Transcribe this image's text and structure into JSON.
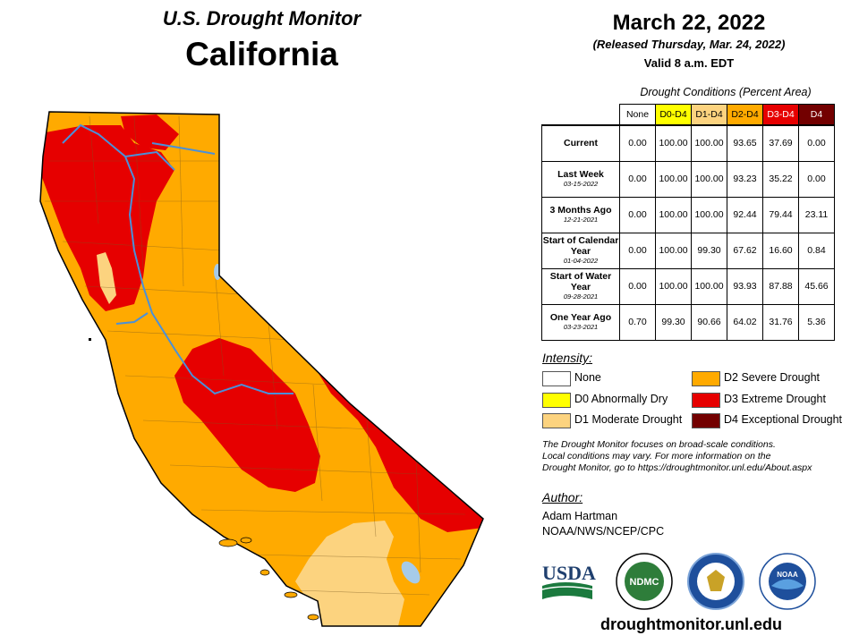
{
  "header": {
    "subtitle": "U.S. Drought Monitor",
    "state": "California",
    "date": "March 22, 2022",
    "released": "(Released Thursday, Mar. 24, 2022)",
    "valid": "Valid 8 a.m. EDT"
  },
  "conditions": {
    "caption": "Drought Conditions (Percent Area)",
    "columns": [
      {
        "label": "None",
        "color": "#ffffff"
      },
      {
        "label": "D0-D4",
        "color": "#ffff00"
      },
      {
        "label": "D1-D4",
        "color": "#fcd37f"
      },
      {
        "label": "D2-D4",
        "color": "#ffaa00"
      },
      {
        "label": "D3-D4",
        "color": "#e60000"
      },
      {
        "label": "D4",
        "color": "#730000"
      }
    ],
    "rows": [
      {
        "label": "Current",
        "date": "",
        "values": [
          "0.00",
          "100.00",
          "100.00",
          "93.65",
          "37.69",
          "0.00"
        ]
      },
      {
        "label": "Last Week",
        "date": "03-15-2022",
        "values": [
          "0.00",
          "100.00",
          "100.00",
          "93.23",
          "35.22",
          "0.00"
        ]
      },
      {
        "label": "3 Months Ago",
        "date": "12-21-2021",
        "values": [
          "0.00",
          "100.00",
          "100.00",
          "92.44",
          "79.44",
          "23.11"
        ]
      },
      {
        "label": "Start of Calendar Year",
        "date": "01-04-2022",
        "values": [
          "0.00",
          "100.00",
          "99.30",
          "67.62",
          "16.60",
          "0.84"
        ]
      },
      {
        "label": "Start of Water Year",
        "date": "09-28-2021",
        "values": [
          "0.00",
          "100.00",
          "100.00",
          "93.93",
          "87.88",
          "45.66"
        ]
      },
      {
        "label": "One Year Ago",
        "date": "03-23-2021",
        "values": [
          "0.70",
          "99.30",
          "90.66",
          "64.02",
          "31.76",
          "5.36"
        ]
      }
    ]
  },
  "intensity": {
    "title": "Intensity:",
    "items": [
      {
        "label": "None",
        "color": "#ffffff"
      },
      {
        "label": "D0 Abnormally Dry",
        "color": "#ffff00"
      },
      {
        "label": "D1 Moderate Drought",
        "color": "#fcd37f"
      },
      {
        "label": "D2 Severe Drought",
        "color": "#ffaa00"
      },
      {
        "label": "D3 Extreme Drought",
        "color": "#e60000"
      },
      {
        "label": "D4 Exceptional Drought",
        "color": "#730000"
      }
    ]
  },
  "note": {
    "line1": "The Drought Monitor focuses on broad-scale conditions.",
    "line2": "Local conditions may vary. For more information on the",
    "line3": "Drought Monitor, go to https://droughtmonitor.unl.edu/About.aspx"
  },
  "author": {
    "title": "Author:",
    "name": "Adam Hartman",
    "org": "NOAA/NWS/NCEP/CPC"
  },
  "logos": {
    "usda": "USDA",
    "ndmc": "NDMC",
    "noaa": "NOAA"
  },
  "website": "droughtmonitor.unl.edu",
  "map_colors": {
    "d1": "#fcd37f",
    "d2": "#ffaa00",
    "d3": "#e60000",
    "river": "#4a90d9",
    "lake": "#a6cbe8"
  }
}
